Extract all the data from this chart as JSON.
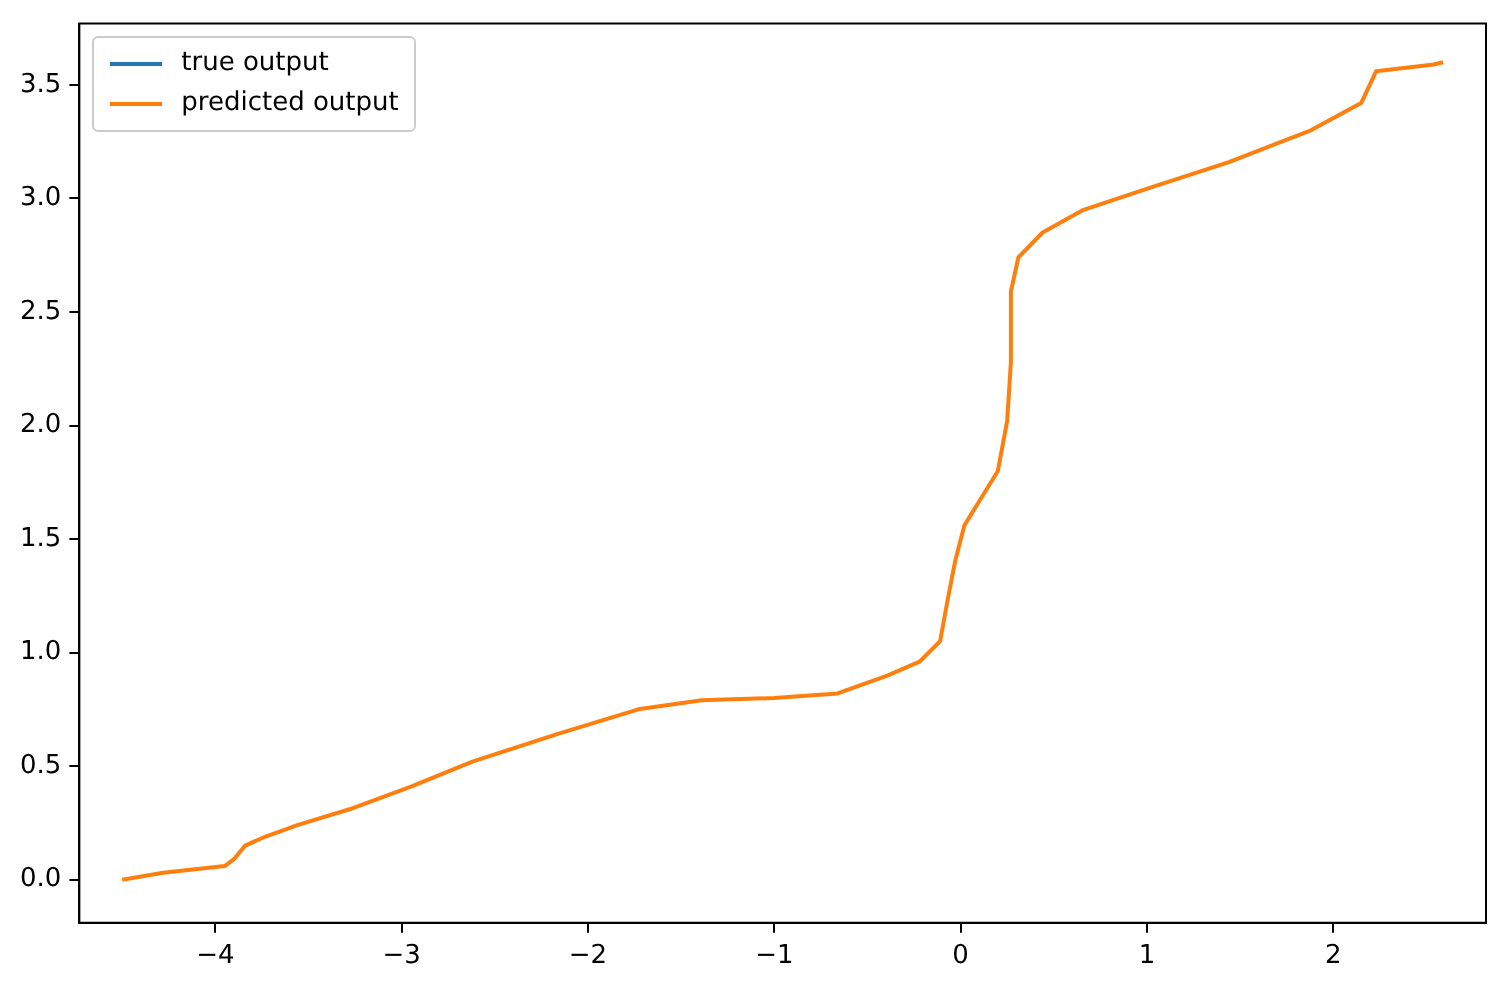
{
  "chart_data": {
    "type": "line",
    "xlim": [
      -4.73,
      2.82
    ],
    "ylim": [
      -0.19,
      3.77
    ],
    "xticks": [
      {
        "value": -4,
        "label": "−4"
      },
      {
        "value": -3,
        "label": "−3"
      },
      {
        "value": -2,
        "label": "−2"
      },
      {
        "value": -1,
        "label": "−1"
      },
      0,
      1,
      2
    ],
    "yticks": [
      {
        "value": 0,
        "label": "0.0"
      },
      0.5,
      {
        "value": 1,
        "label": "1.0"
      },
      1.5,
      {
        "value": 2,
        "label": "2.0"
      },
      2.5,
      {
        "value": 3,
        "label": "3.0"
      },
      3.5
    ],
    "x": [
      -4.5,
      -4.28,
      -4.06,
      -3.95,
      -3.9,
      -3.84,
      -3.73,
      -3.56,
      -3.28,
      -2.95,
      -2.62,
      -2.17,
      -1.73,
      -1.39,
      -1.0,
      -0.66,
      -0.39,
      -0.22,
      -0.11,
      -0.07,
      -0.03,
      0.02,
      0.11,
      0.2,
      0.25,
      0.27,
      0.27,
      0.31,
      0.44,
      0.66,
      0.99,
      1.44,
      1.88,
      2.15,
      2.23,
      2.54,
      2.59
    ],
    "series": [
      {
        "name": "true output",
        "color": "#1f77b4",
        "values": [
          null,
          null,
          null,
          null,
          null,
          null,
          null,
          null,
          null,
          null,
          null,
          null,
          null,
          null,
          null,
          null,
          null,
          null,
          null,
          null,
          null,
          null,
          null,
          null,
          null,
          null,
          null,
          null,
          null,
          null,
          null,
          null,
          null,
          null,
          null,
          null,
          null
        ]
      },
      {
        "name": "predicted output",
        "color": "#ff7f0e",
        "values": [
          0.0,
          0.03,
          0.05,
          0.06,
          0.09,
          0.15,
          0.19,
          0.24,
          0.31,
          0.41,
          0.52,
          0.64,
          0.75,
          0.79,
          0.8,
          0.82,
          0.9,
          0.96,
          1.05,
          1.23,
          1.4,
          1.56,
          1.68,
          1.8,
          2.02,
          2.28,
          2.59,
          2.74,
          2.85,
          2.95,
          3.04,
          3.16,
          3.3,
          3.42,
          3.56,
          3.59,
          3.6
        ]
      }
    ],
    "legend": "top left",
    "grid": false
  }
}
